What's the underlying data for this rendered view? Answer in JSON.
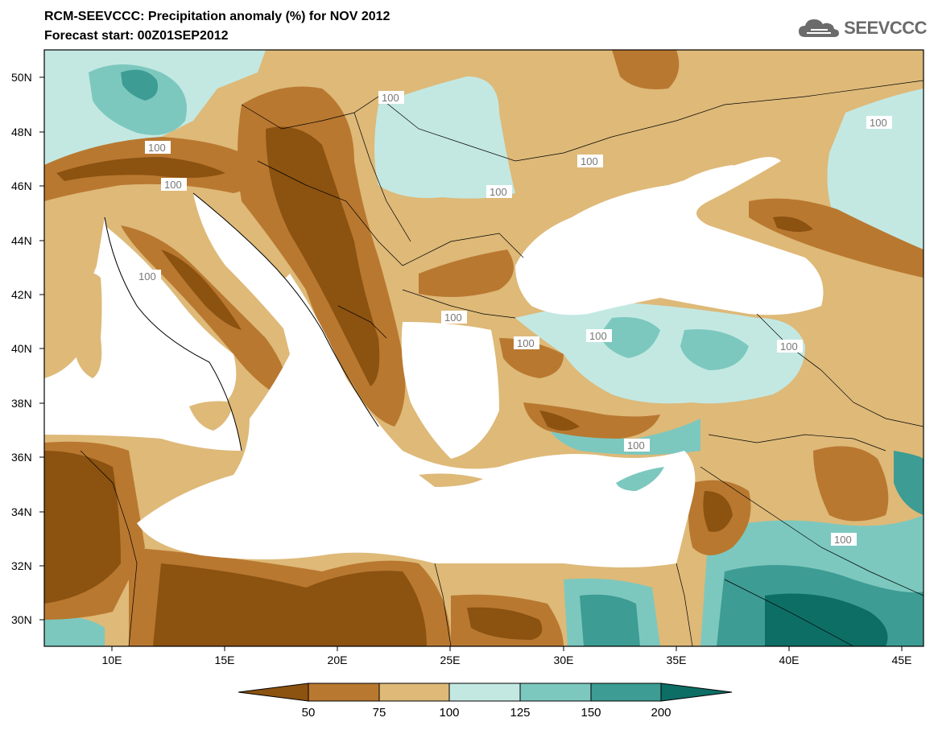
{
  "title": {
    "line1": "RCM-SEEVCCC: Precipitation anomaly (%) for NOV 2012",
    "line2": "Forecast start: 00Z01SEP2012"
  },
  "logo": {
    "text": "SEEVCCC",
    "icon": "cloud-icon"
  },
  "map": {
    "lat_labels": [
      "50N",
      "48N",
      "46N",
      "44N",
      "42N",
      "40N",
      "38N",
      "36N",
      "34N",
      "32N",
      "30N"
    ],
    "lon_labels": [
      "10E",
      "15E",
      "20E",
      "25E",
      "30E",
      "35E",
      "40E",
      "45E"
    ],
    "contour_labels": [
      "100",
      "100",
      "100",
      "100",
      "100",
      "100",
      "100",
      "100",
      "100",
      "100",
      "100",
      "100",
      "100"
    ]
  },
  "colorbar": {
    "labels": [
      "50",
      "75",
      "100",
      "125",
      "150",
      "200"
    ],
    "colors": [
      "#8b5210",
      "#b97830",
      "#deb978",
      "#c3e8e2",
      "#7cc8bf",
      "#3d9c93",
      "#0d6e66"
    ]
  },
  "colors": {
    "very_dry": "#8b5210",
    "dry": "#b97830",
    "slightly_dry": "#deb978",
    "slightly_wet": "#c3e8e2",
    "wet": "#7cc8bf",
    "very_wet": "#3d9c93",
    "extreme_wet": "#0d6e66",
    "sea": "#ffffff"
  }
}
